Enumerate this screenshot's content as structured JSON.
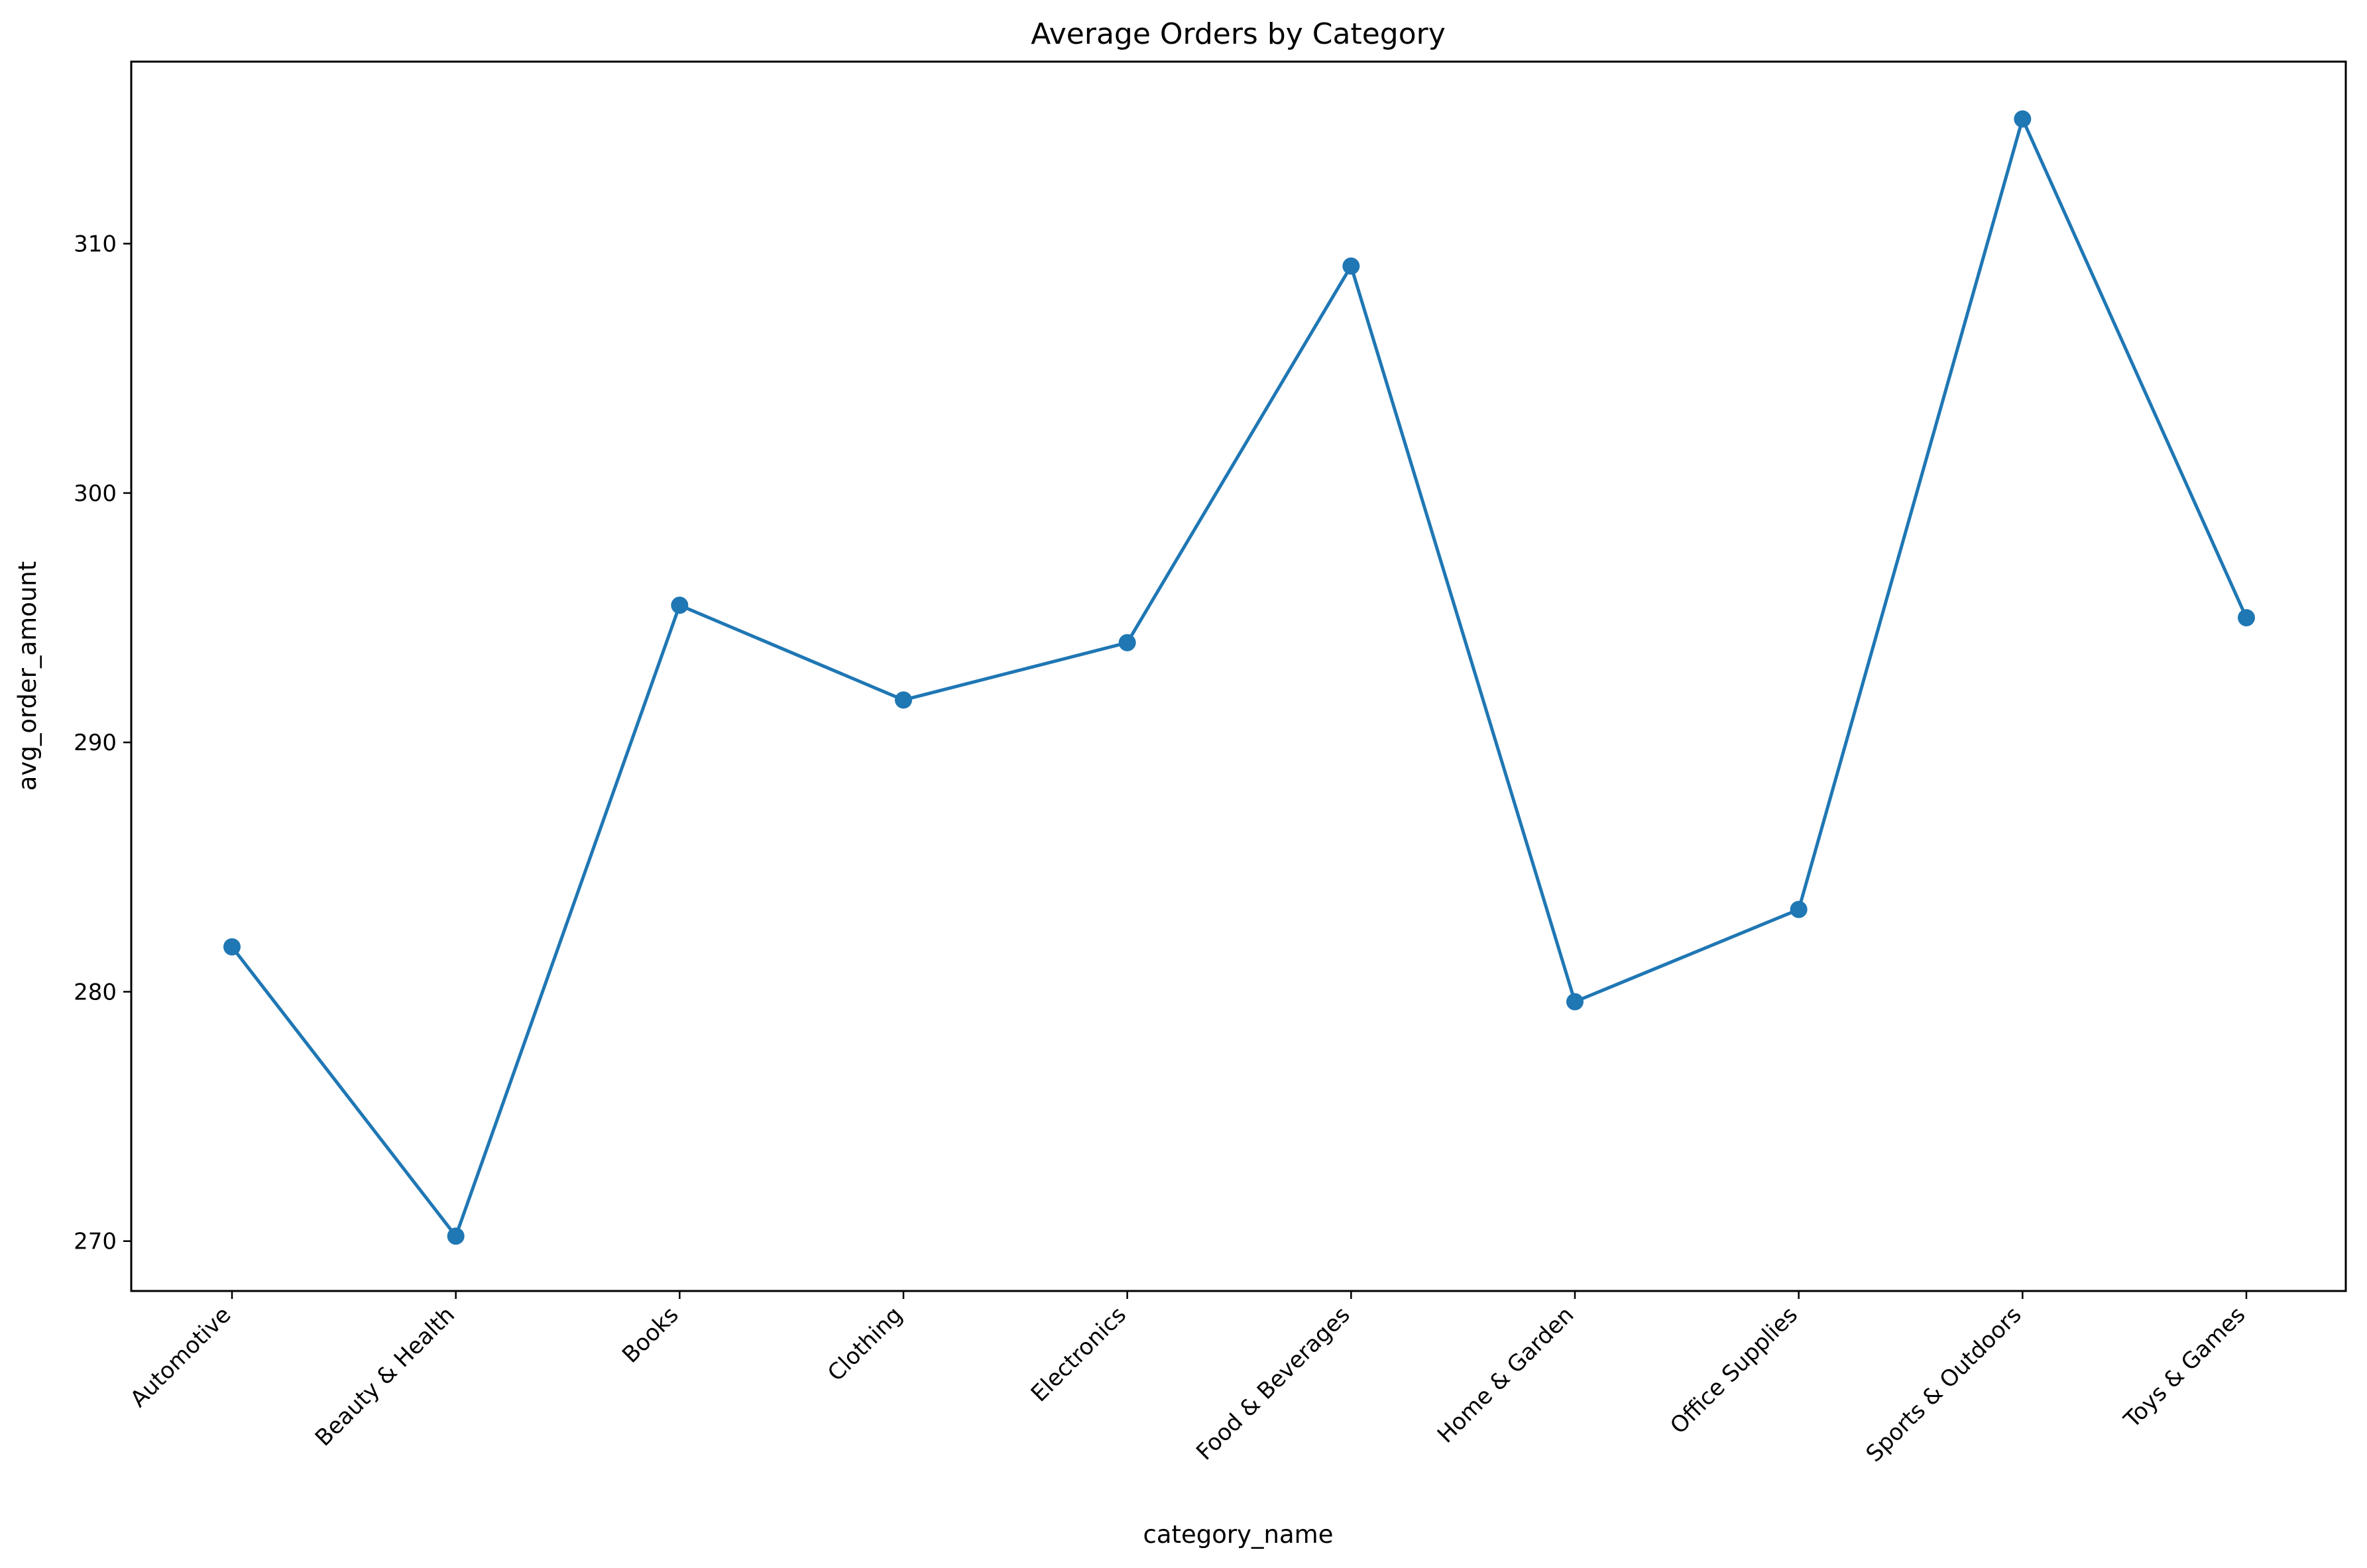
{
  "chart_data": {
    "type": "line",
    "title": "Average Orders by Category",
    "xlabel": "category_name",
    "ylabel": "avg_order_amount",
    "categories": [
      "Automotive",
      "Beauty & Health",
      "Books",
      "Clothing",
      "Electronics",
      "Food & Beverages",
      "Home & Garden",
      "Office Supplies",
      "Sports & Outdoors",
      "Toys & Games"
    ],
    "values": [
      281.8,
      270.2,
      295.5,
      291.7,
      294.0,
      309.1,
      279.6,
      283.3,
      315.0,
      295.0
    ],
    "ylim": [
      268.0,
      317.3
    ],
    "yticks": [
      270,
      280,
      290,
      300,
      310
    ],
    "grid": false,
    "marker": "circle",
    "colors": {
      "series": "#1f77b4"
    }
  }
}
